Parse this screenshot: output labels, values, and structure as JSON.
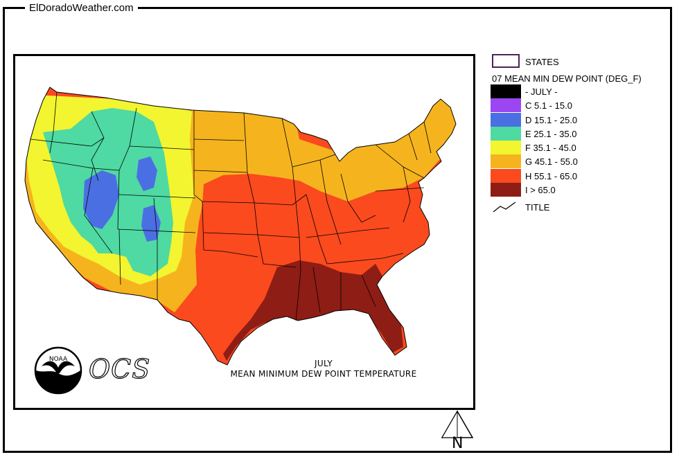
{
  "site_title": "ElDoradoWeather.com",
  "map": {
    "caption_line1": "JULY",
    "caption_line2": "MEAN MINIMUM DEW POINT TEMPERATURE",
    "logo_text": "NOAA",
    "ocs_text": "OCS"
  },
  "legend": {
    "states_label": "STATES",
    "title": "07 MEAN MIN DEW POINT (DEG_F)",
    "items": [
      {
        "label": "- JULY -",
        "color": "#000000"
      },
      {
        "label": "C 5.1 - 15.0",
        "color": "#9b46f0"
      },
      {
        "label": "D 15.1 - 25.0",
        "color": "#4a6fe3"
      },
      {
        "label": "E 25.1 - 35.0",
        "color": "#4fd9a3"
      },
      {
        "label": "F 35.1 - 45.0",
        "color": "#f2f52f"
      },
      {
        "label": "G 45.1 - 55.0",
        "color": "#f5b41e"
      },
      {
        "label": "H 55.1 - 65.0",
        "color": "#fa4a1e"
      },
      {
        "label": "I > 65.0",
        "color": "#8e1d15"
      }
    ],
    "title_label": "TITLE"
  },
  "compass": {
    "label": "N"
  }
}
